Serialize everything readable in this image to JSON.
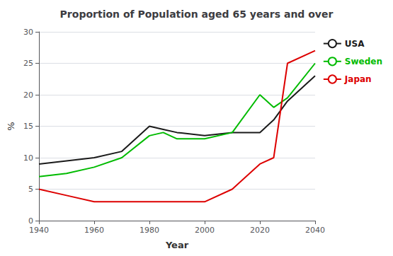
{
  "chart_data": {
    "type": "line",
    "title": "Proportion of Population aged 65 years and over",
    "x_label": "Year",
    "y_label": "%",
    "x": [
      1940,
      1950,
      1960,
      1970,
      1980,
      1985,
      1990,
      2000,
      2010,
      2020,
      2025,
      2030,
      2040
    ],
    "series": [
      {
        "name": "USA",
        "color": "#1a1a1a",
        "values": [
          9,
          9.5,
          10,
          11,
          15,
          14.5,
          14,
          13.5,
          14,
          14,
          16,
          19,
          23
        ]
      },
      {
        "name": "Sweden",
        "color": "#00bb00",
        "values": [
          7,
          7.5,
          8.5,
          10,
          13.5,
          14,
          13,
          13,
          14,
          20,
          18,
          19.5,
          25
        ]
      },
      {
        "name": "Japan",
        "color": "#dd0000",
        "values": [
          5,
          4,
          3,
          3,
          3,
          3,
          3,
          3,
          5,
          9,
          10,
          25,
          27
        ]
      }
    ],
    "xlim": [
      1940,
      2040
    ],
    "xticks": [
      1940,
      1960,
      1980,
      2000,
      2020,
      2040
    ],
    "ylim": [
      0,
      30
    ],
    "yticks": [
      0,
      5,
      10,
      15,
      20,
      25,
      30
    ],
    "grid": true,
    "legend": "right"
  }
}
